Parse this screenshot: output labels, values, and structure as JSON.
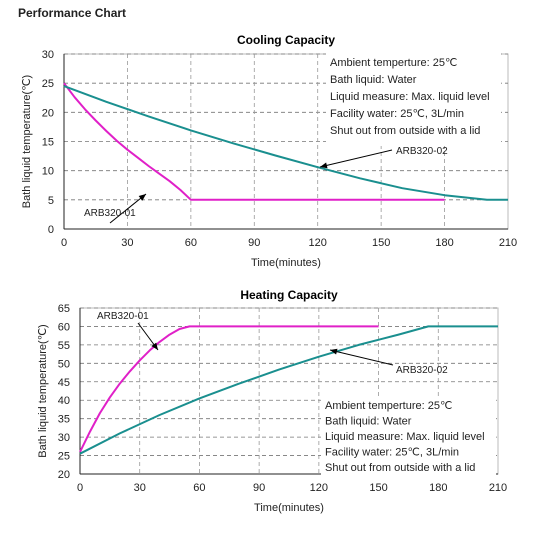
{
  "page_title": "Performance Chart",
  "chart_data": [
    {
      "type": "line",
      "title": "Cooling Capacity",
      "xlabel": "Time(minutes)",
      "ylabel": "Bath liquid temperature(℃)",
      "xlim": [
        0,
        210
      ],
      "ylim": [
        0,
        30
      ],
      "xticks": [
        0,
        30,
        60,
        90,
        120,
        150,
        180,
        210
      ],
      "yticks": [
        0,
        5,
        10,
        15,
        20,
        25,
        30
      ],
      "grid": true,
      "notes": [
        "Ambient temperture: 25℃",
        "Bath liquid: Water",
        "Liquid measure: Max. liquid level",
        "Facility water: 25℃, 3L/min",
        "Shut out from outside with a lid"
      ],
      "series": [
        {
          "name": "ARB320-01",
          "color": "#e020c8",
          "x": [
            0,
            5,
            10,
            15,
            20,
            25,
            30,
            35,
            40,
            45,
            50,
            55,
            60,
            70,
            90,
            120,
            150,
            180
          ],
          "y": [
            25,
            22.6,
            20.5,
            18.6,
            16.8,
            15.1,
            13.6,
            12.2,
            10.8,
            9.5,
            8.2,
            6.7,
            5,
            5,
            5,
            5,
            5,
            5
          ]
        },
        {
          "name": "ARB320-02",
          "color": "#1a8f8f",
          "x": [
            0,
            20,
            40,
            60,
            80,
            100,
            120,
            140,
            160,
            180,
            200,
            210
          ],
          "y": [
            24.5,
            21.8,
            19.3,
            16.9,
            14.7,
            12.6,
            10.6,
            8.7,
            7,
            5.8,
            5,
            5
          ]
        }
      ]
    },
    {
      "type": "line",
      "title": "Heating Capacity",
      "xlabel": "Time(minutes)",
      "ylabel": "Bath liquid temperature(℃)",
      "xlim": [
        0,
        210
      ],
      "ylim": [
        20,
        65
      ],
      "xticks": [
        0,
        30,
        60,
        90,
        120,
        150,
        180,
        210
      ],
      "yticks": [
        20,
        25,
        30,
        35,
        40,
        45,
        50,
        55,
        60,
        65
      ],
      "grid": true,
      "notes": [
        "Ambient temperture: 25℃",
        "Bath liquid: Water",
        "Liquid measure: Max. liquid level",
        "Facility water: 25℃, 3L/min",
        "Shut out from outside with a lid"
      ],
      "series": [
        {
          "name": "ARB320-01",
          "color": "#e020c8",
          "x": [
            0,
            5,
            10,
            15,
            20,
            25,
            30,
            35,
            40,
            45,
            50,
            55,
            70,
            90,
            110,
            130,
            150
          ],
          "y": [
            26,
            31.5,
            36.5,
            40.8,
            44.5,
            47.8,
            50.8,
            53.5,
            55.8,
            57.8,
            59.3,
            60,
            60,
            60,
            60,
            60,
            60
          ]
        },
        {
          "name": "ARB320-02",
          "color": "#1a8f8f",
          "x": [
            0,
            20,
            40,
            60,
            80,
            100,
            120,
            140,
            160,
            175,
            190,
            210
          ],
          "y": [
            25.5,
            31,
            36,
            40.5,
            44.5,
            48.3,
            51.8,
            55,
            57.8,
            60,
            60,
            60
          ]
        }
      ]
    }
  ]
}
